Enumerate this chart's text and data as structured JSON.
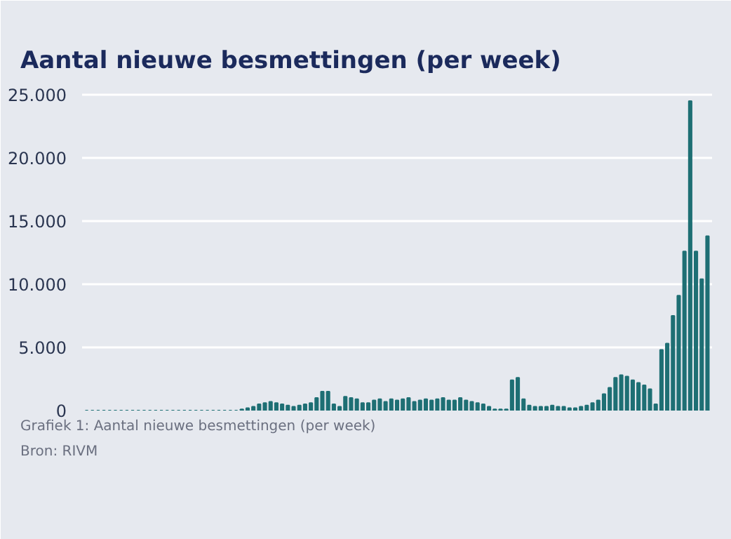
{
  "chart_data": {
    "type": "bar",
    "title": "Aantal nieuwe besmettingen (per week)",
    "categories": [
      null,
      null,
      null,
      null,
      null,
      null,
      null,
      null,
      null,
      null,
      null,
      null,
      null,
      null,
      null,
      null,
      null,
      null,
      null,
      null,
      null,
      null,
      null,
      null,
      null,
      null,
      null,
      null,
      null,
      null,
      null,
      null,
      null,
      null,
      null,
      null,
      null,
      null,
      null,
      null,
      null,
      null,
      null,
      null,
      null,
      null,
      null,
      null,
      null,
      null,
      null,
      null,
      null,
      null,
      null,
      null,
      null,
      null,
      null,
      null,
      null,
      null,
      null,
      null,
      null,
      null,
      null,
      null,
      null,
      null,
      null,
      null,
      null,
      null,
      null,
      null,
      null,
      null,
      null,
      null,
      null,
      null,
      null,
      null,
      null,
      null,
      null,
      null,
      null,
      null,
      null,
      null,
      null,
      null,
      null,
      null,
      null,
      null,
      null,
      null,
      null,
      null,
      null,
      null,
      null,
      null,
      null,
      null,
      null
    ],
    "values": [
      0,
      0,
      0,
      0,
      0,
      0,
      0,
      0,
      0,
      0,
      0,
      0,
      0,
      0,
      0,
      0,
      0,
      0,
      0,
      0,
      0,
      0,
      0,
      0,
      0,
      0,
      0,
      100,
      200,
      300,
      500,
      600,
      700,
      600,
      500,
      400,
      300,
      400,
      500,
      600,
      1000,
      1500,
      1500,
      500,
      300,
      1100,
      1000,
      900,
      600,
      600,
      800,
      900,
      700,
      900,
      800,
      900,
      1000,
      700,
      800,
      900,
      800,
      900,
      1000,
      800,
      800,
      1000,
      800,
      700,
      600,
      500,
      300,
      100,
      100,
      100,
      2400,
      2600,
      900,
      400,
      300,
      300,
      300,
      400,
      300,
      300,
      200,
      200,
      300,
      400,
      600,
      800,
      1300,
      1800,
      2600,
      2800,
      2700,
      2400,
      2200,
      2000,
      1700,
      500,
      4800,
      5300,
      7500,
      9100,
      12600,
      24500,
      12600,
      10400,
      13800
    ],
    "color": "#1e6f74",
    "ylim": [
      0,
      26000
    ],
    "yticks": [
      {
        "value": 0,
        "label": "0"
      },
      {
        "value": 5000,
        "label": "5.000"
      },
      {
        "value": 10000,
        "label": "10.000"
      },
      {
        "value": 15000,
        "label": "15.000"
      },
      {
        "value": 20000,
        "label": "20.000"
      },
      {
        "value": 25000,
        "label": "25.000"
      }
    ],
    "grid": "y",
    "annotations": [
      "Grafiek 1: Aantal nieuwe besmettingen (per week)",
      "Bron: RIVM"
    ]
  }
}
